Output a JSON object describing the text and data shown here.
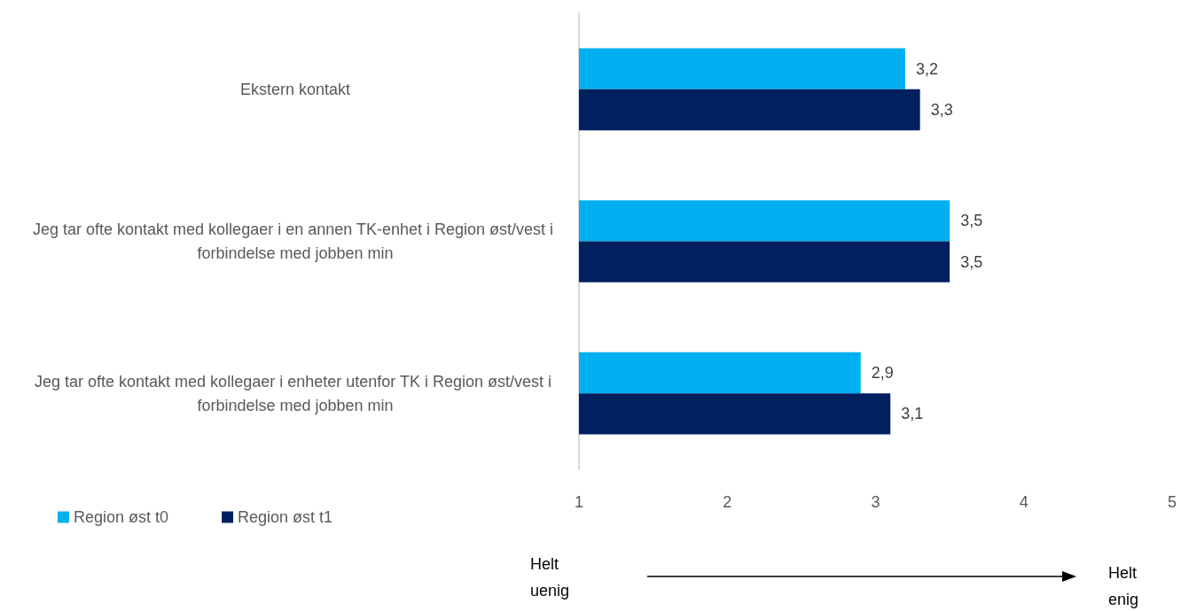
{
  "chart_data": {
    "type": "bar",
    "orientation": "horizontal",
    "categories": [
      "Ekstern kontakt",
      "Jeg tar ofte kontakt med kollegaer i en annen TK-enhet i Region øst/vest i forbindelse med jobben min",
      "Jeg tar ofte kontakt med kollegaer i enheter utenfor TK i Region øst/vest i forbindelse med jobben min"
    ],
    "series": [
      {
        "name": "Region øst t0",
        "color": "#00b0f0",
        "values": [
          3.2,
          3.5,
          2.9
        ],
        "value_labels": [
          "3,2",
          "3,5",
          "2,9"
        ]
      },
      {
        "name": "Region øst t1",
        "color": "#002060",
        "values": [
          3.3,
          3.5,
          3.1
        ],
        "value_labels": [
          "3,3",
          "3,5",
          "3,1"
        ]
      }
    ],
    "xlim": [
      1,
      5
    ],
    "xticks": [
      1,
      2,
      3,
      4,
      5
    ],
    "grid": false,
    "legend": "bottom left",
    "annotations": [
      "Helt uenig",
      "Helt enig"
    ]
  }
}
